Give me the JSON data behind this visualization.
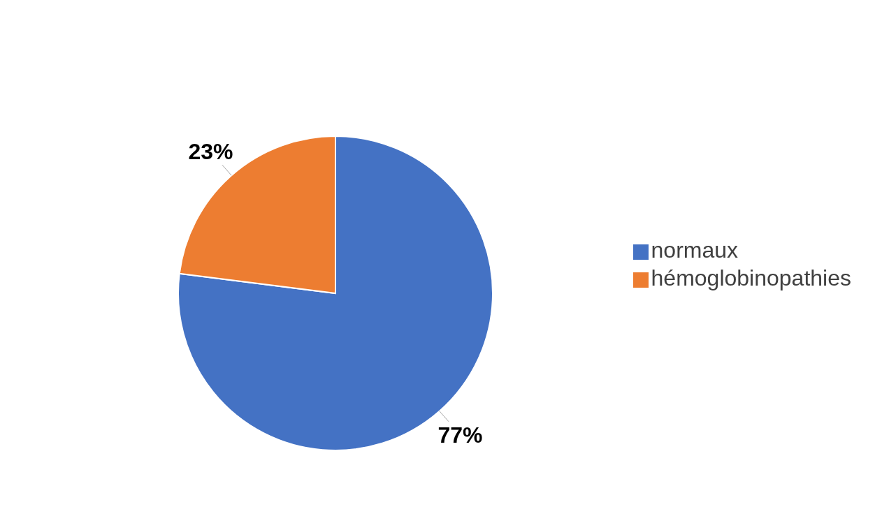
{
  "chart_data": {
    "type": "pie",
    "categories": [
      "normaux",
      "hémoglobinopathies"
    ],
    "values": [
      77,
      23
    ],
    "colors": [
      "#4472c4",
      "#ed7d31"
    ],
    "value_labels": [
      "77%",
      "23%"
    ],
    "legend": "right"
  }
}
